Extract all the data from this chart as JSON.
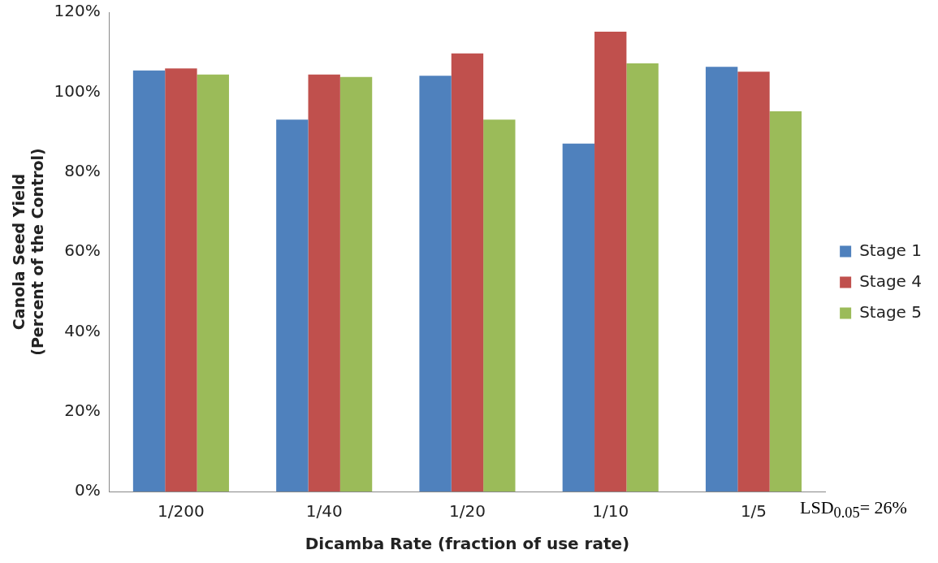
{
  "chart_data": {
    "type": "bar",
    "xlabel": "Dicamba Rate (fraction of use rate)",
    "ylabel": [
      "Canola Seed Yield",
      "(Percent of the Control)"
    ],
    "categories": [
      "1/200",
      "1/40",
      "1/20",
      "1/10",
      "1/5"
    ],
    "series": [
      {
        "name": "Stage 1",
        "color": "#4f81bd",
        "values": [
          105.4,
          93.1,
          104.1,
          87.1,
          106.3
        ]
      },
      {
        "name": "Stage 4",
        "color": "#c0504d",
        "values": [
          105.9,
          104.4,
          109.7,
          115.1,
          105.1
        ]
      },
      {
        "name": "Stage 5",
        "color": "#9bbb59",
        "values": [
          104.4,
          103.8,
          93.1,
          107.2,
          95.2
        ]
      }
    ],
    "ylim": [
      0,
      120
    ],
    "yticks": [
      {
        "value": 0,
        "label": "0%"
      },
      {
        "value": 20,
        "label": "20%"
      },
      {
        "value": 40,
        "label": "40%"
      },
      {
        "value": 60,
        "label": "60%"
      },
      {
        "value": 80,
        "label": "80%"
      },
      {
        "value": 100,
        "label": "100%"
      },
      {
        "value": 120,
        "label": "120%"
      }
    ],
    "grid": false,
    "legend": "right",
    "annotations": [
      "LSD$_{0.05}$= 26%"
    ]
  }
}
